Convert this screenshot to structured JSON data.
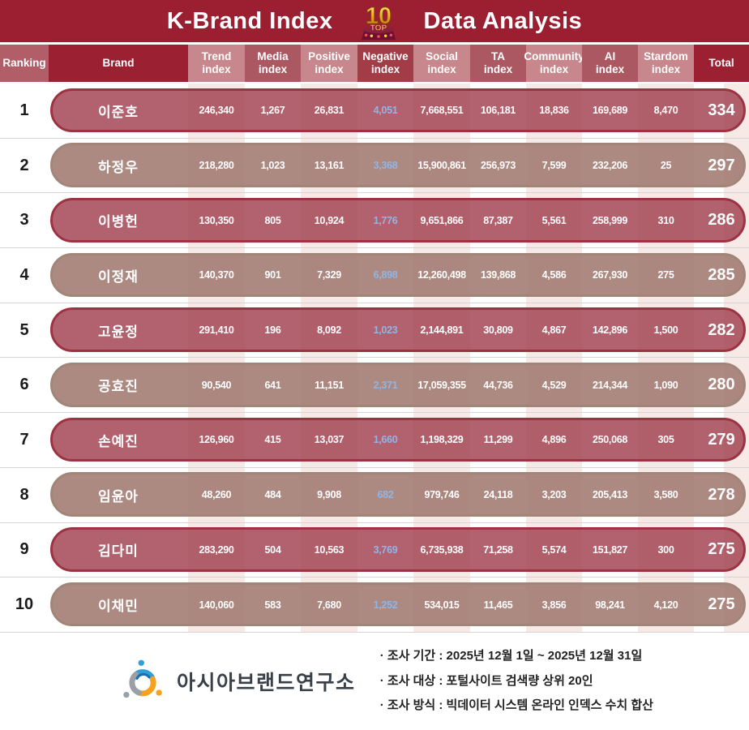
{
  "banner": {
    "title_left": "K-Brand Index",
    "title_right": "Data Analysis",
    "badge": {
      "top": "TOP",
      "number": "10"
    }
  },
  "columns": [
    {
      "l1": "Ranking"
    },
    {
      "l1": "Brand"
    },
    {
      "l1": "Trend",
      "l2": "index"
    },
    {
      "l1": "Media",
      "l2": "index"
    },
    {
      "l1": "Positive",
      "l2": "index"
    },
    {
      "l1": "Negative",
      "l2": "index"
    },
    {
      "l1": "Social",
      "l2": "index"
    },
    {
      "l1": "TA",
      "l2": "index"
    },
    {
      "l1": "Community",
      "l2": "index"
    },
    {
      "l1": "AI",
      "l2": "index"
    },
    {
      "l1": "Stardom",
      "l2": "index"
    },
    {
      "l1": "Total"
    }
  ],
  "table": {
    "rows": [
      {
        "rank": "1",
        "brand": "이준호",
        "values": [
          "246,340",
          "1,267",
          "26,831",
          "4,051",
          "7,668,551",
          "106,181",
          "18,836",
          "169,689",
          "8,470"
        ],
        "total": "334"
      },
      {
        "rank": "2",
        "brand": "하정우",
        "values": [
          "218,280",
          "1,023",
          "13,161",
          "3,368",
          "15,900,861",
          "256,973",
          "7,599",
          "232,206",
          "25"
        ],
        "total": "297"
      },
      {
        "rank": "3",
        "brand": "이병헌",
        "values": [
          "130,350",
          "805",
          "10,924",
          "1,776",
          "9,651,866",
          "87,387",
          "5,561",
          "258,999",
          "310"
        ],
        "total": "286"
      },
      {
        "rank": "4",
        "brand": "이정재",
        "values": [
          "140,370",
          "901",
          "7,329",
          "6,898",
          "12,260,498",
          "139,868",
          "4,586",
          "267,930",
          "275"
        ],
        "total": "285"
      },
      {
        "rank": "5",
        "brand": "고윤정",
        "values": [
          "291,410",
          "196",
          "8,092",
          "1,023",
          "2,144,891",
          "30,809",
          "4,867",
          "142,896",
          "1,500"
        ],
        "total": "282"
      },
      {
        "rank": "6",
        "brand": "공효진",
        "values": [
          "90,540",
          "641",
          "11,151",
          "2,371",
          "17,059,355",
          "44,736",
          "4,529",
          "214,344",
          "1,090"
        ],
        "total": "280"
      },
      {
        "rank": "7",
        "brand": "손예진",
        "values": [
          "126,960",
          "415",
          "13,037",
          "1,660",
          "1,198,329",
          "11,299",
          "4,896",
          "250,068",
          "305"
        ],
        "total": "279"
      },
      {
        "rank": "8",
        "brand": "임윤아",
        "values": [
          "48,260",
          "484",
          "9,908",
          "682",
          "979,746",
          "24,118",
          "3,203",
          "205,413",
          "3,580"
        ],
        "total": "278"
      },
      {
        "rank": "9",
        "brand": "김다미",
        "values": [
          "283,290",
          "504",
          "10,563",
          "3,769",
          "6,735,938",
          "71,258",
          "5,574",
          "151,827",
          "300"
        ],
        "total": "275"
      },
      {
        "rank": "10",
        "brand": "이채민",
        "values": [
          "140,060",
          "583",
          "7,680",
          "1,252",
          "534,015",
          "11,465",
          "3,856",
          "98,241",
          "4,120"
        ],
        "total": "275"
      }
    ]
  },
  "footer": {
    "logo_name": "아시아브랜드연구소",
    "notes": [
      "· 조사 기간 : 2025년 12월 1일 ~ 2025년 12월 31일",
      "· 조사 대상 : 포털사이트 검색량 상위 20인",
      "· 조사 방식 : 빅데이터 시스템 온라인 인덱스 수치 합산"
    ]
  },
  "colors": {
    "banner_red": "#9b1f31",
    "header_light_cell": "#c8868d",
    "header_medium_cell": "#ac5862",
    "odd_row_pill": "#b1626e",
    "odd_row_border": "#9d3242",
    "even_row_pill": "#ac8a82",
    "even_row_border": "#a08578",
    "negative_value_blue": "#8fb6e6",
    "stripe_pink": "#f7e9e6"
  },
  "chart_data": {
    "type": "table",
    "title": "K-Brand Index TOP 10 Data Analysis",
    "columns": [
      "Ranking",
      "Brand",
      "Trend index",
      "Media index",
      "Positive index",
      "Negative index",
      "Social index",
      "TA index",
      "Community index",
      "AI index",
      "Stardom index",
      "Total"
    ],
    "rows": [
      [
        1,
        "이준호",
        246340,
        1267,
        26831,
        4051,
        7668551,
        106181,
        18836,
        169689,
        8470,
        334
      ],
      [
        2,
        "하정우",
        218280,
        1023,
        13161,
        3368,
        15900861,
        256973,
        7599,
        232206,
        25,
        297
      ],
      [
        3,
        "이병헌",
        130350,
        805,
        10924,
        1776,
        9651866,
        87387,
        5561,
        258999,
        310,
        286
      ],
      [
        4,
        "이정재",
        140370,
        901,
        7329,
        6898,
        12260498,
        139868,
        4586,
        267930,
        275,
        285
      ],
      [
        5,
        "고윤정",
        291410,
        196,
        8092,
        1023,
        2144891,
        30809,
        4867,
        142896,
        1500,
        282
      ],
      [
        6,
        "공효진",
        90540,
        641,
        11151,
        2371,
        17059355,
        44736,
        4529,
        214344,
        1090,
        280
      ],
      [
        7,
        "손예진",
        126960,
        415,
        13037,
        1660,
        1198329,
        11299,
        4896,
        250068,
        305,
        279
      ],
      [
        8,
        "임윤아",
        48260,
        484,
        9908,
        682,
        979746,
        24118,
        3203,
        205413,
        3580,
        278
      ],
      [
        9,
        "김다미",
        283290,
        504,
        10563,
        3769,
        6735938,
        71258,
        5574,
        151827,
        300,
        275
      ],
      [
        10,
        "이채민",
        140060,
        583,
        7680,
        1252,
        534015,
        11465,
        3856,
        98241,
        4120,
        275
      ]
    ]
  }
}
